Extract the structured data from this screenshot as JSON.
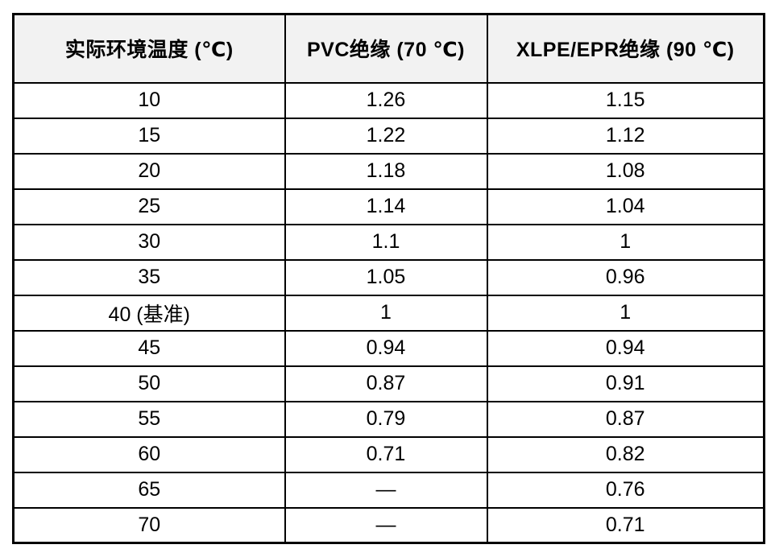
{
  "table": {
    "columns": [
      "实际环境温度 (℃)",
      "PVC绝缘 (70 ℃)",
      "XLPE/EPR绝缘 (90 ℃)"
    ],
    "rows": [
      [
        "10",
        "1.26",
        "1.15"
      ],
      [
        "15",
        "1.22",
        "1.12"
      ],
      [
        "20",
        "1.18",
        "1.08"
      ],
      [
        "25",
        "1.14",
        "1.04"
      ],
      [
        "30",
        "1.1",
        "1"
      ],
      [
        "35",
        "1.05",
        "0.96"
      ],
      [
        "40 (基准)",
        "1",
        "1"
      ],
      [
        "45",
        "0.94",
        "0.94"
      ],
      [
        "50",
        "0.87",
        "0.91"
      ],
      [
        "55",
        "0.79",
        "0.87"
      ],
      [
        "60",
        "0.71",
        "0.82"
      ],
      [
        "65",
        "—",
        "0.76"
      ],
      [
        "70",
        "—",
        "0.71"
      ]
    ],
    "empty_marker": "—",
    "colors": {
      "header_bg": "#f2f2f2",
      "border": "#000000",
      "text": "#000000",
      "body_bg": "#ffffff"
    }
  }
}
